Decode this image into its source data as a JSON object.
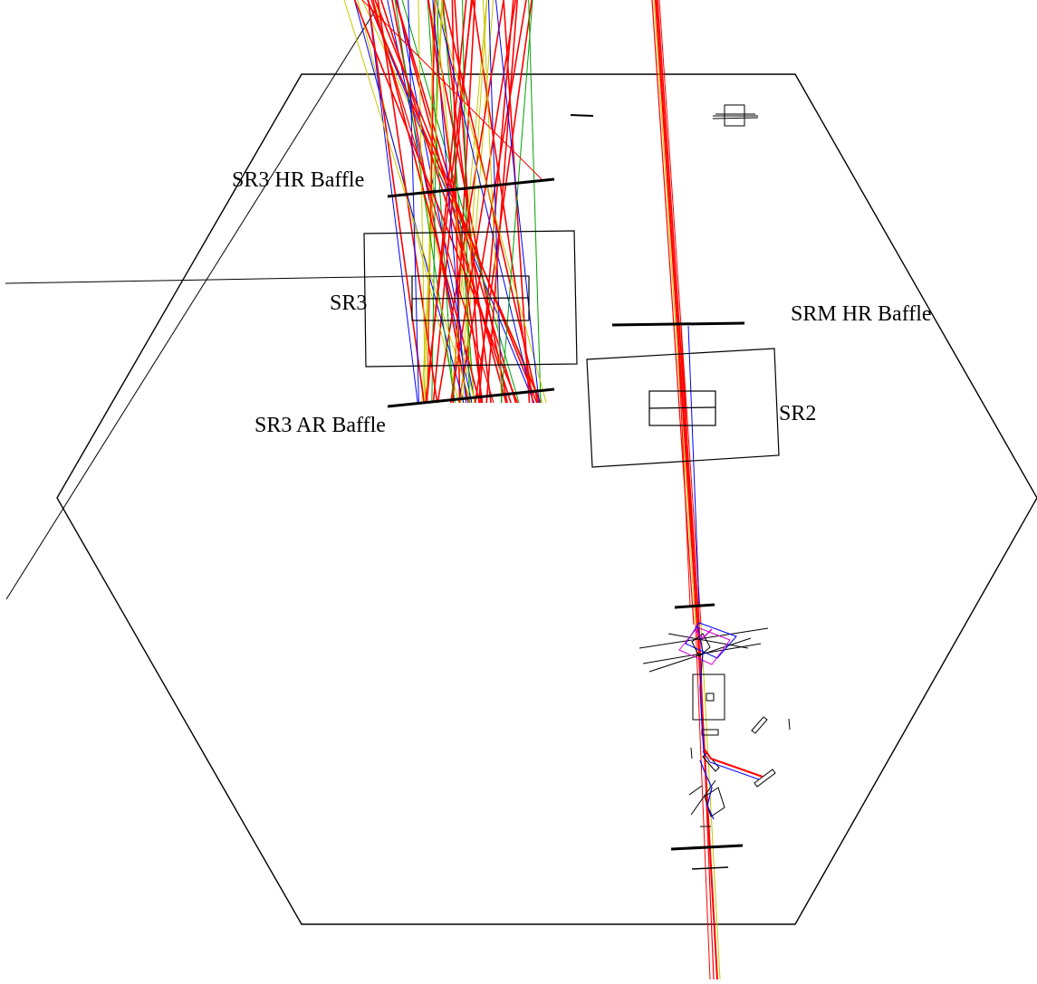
{
  "labels": {
    "sr3_hr_baffle": "SR3 HR Baffle",
    "sr3": "SR3",
    "srm_hr_baffle": "SRM HR Baffle",
    "sr3_ar_baffle": "SR3 AR Baffle",
    "sr2": "SR2"
  },
  "colors": {
    "outline": "#000000",
    "ray_red": "#ff0000",
    "ray_yellow": "#c8c800",
    "ray_blue": "#0000ff",
    "ray_green": "#00a000",
    "ray_magenta": "#d000d0"
  }
}
